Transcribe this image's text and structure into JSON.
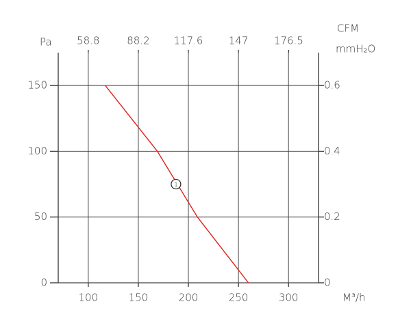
{
  "chart_data": {
    "type": "line",
    "y_label": "Pa",
    "x2_label": "CFM",
    "y2_label": "mmH₂O",
    "x_label": "M³/h",
    "xlim": [
      70,
      330
    ],
    "xticks": [
      100,
      150,
      200,
      250,
      300
    ],
    "x2lim": [
      41.16,
      194.04
    ],
    "x2ticks": [
      58.8,
      88.2,
      117.6,
      147,
      176.5
    ],
    "ylim": [
      0,
      175
    ],
    "yticks": [
      0,
      50,
      100,
      150
    ],
    "y2lim": [
      0,
      0.7
    ],
    "y2ticks": [
      0,
      0.2,
      0.4,
      0.6
    ],
    "grid": true,
    "x": [
      117,
      169,
      209,
      260
    ],
    "series": [
      {
        "color": "#e0201b",
        "values": [
          150,
          100,
          50,
          0
        ]
      }
    ],
    "annotations": [
      {
        "label": "1",
        "x": 187.6,
        "y": 75
      }
    ]
  }
}
